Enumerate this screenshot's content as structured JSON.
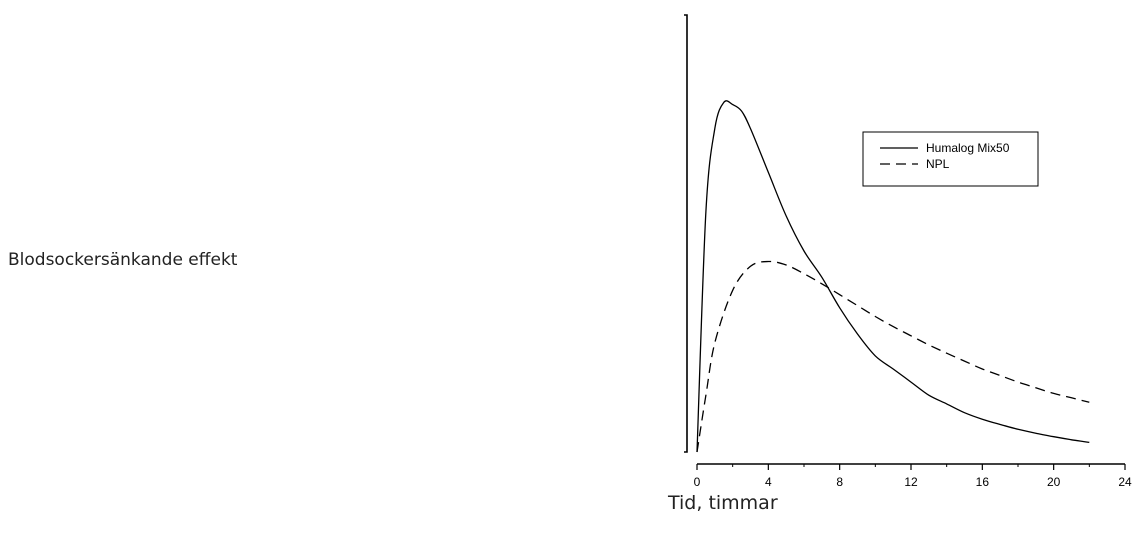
{
  "chart_data": {
    "type": "line",
    "xlabel": "Tid, timmar",
    "ylabel": "Blodsockersänkande effekt",
    "xlim": [
      0,
      24
    ],
    "ylim": [
      0,
      1
    ],
    "xticks": [
      0,
      4,
      8,
      12,
      16,
      20,
      24
    ],
    "legend_position": "top-right",
    "grid": false,
    "series": [
      {
        "name": "Humalog Mix50",
        "style": "solid",
        "color": "#000000",
        "x": [
          0,
          0.5,
          1,
          1.5,
          2,
          2.5,
          3,
          4,
          5,
          6,
          7,
          8,
          9,
          10,
          11,
          12,
          13,
          14,
          15,
          16,
          17,
          18,
          19,
          20,
          21,
          22
        ],
        "y": [
          0,
          0.55,
          0.74,
          0.8,
          0.795,
          0.78,
          0.74,
          0.64,
          0.54,
          0.46,
          0.4,
          0.33,
          0.27,
          0.22,
          0.19,
          0.16,
          0.13,
          0.11,
          0.09,
          0.075,
          0.063,
          0.052,
          0.043,
          0.035,
          0.028,
          0.022
        ]
      },
      {
        "name": "NPL",
        "style": "dashed",
        "color": "#000000",
        "x": [
          0,
          0.5,
          1,
          2,
          3,
          4,
          5,
          6,
          7,
          8,
          9,
          10,
          11,
          12,
          13,
          14,
          15,
          16,
          17,
          18,
          19,
          20,
          21,
          22
        ],
        "y": [
          0,
          0.13,
          0.25,
          0.37,
          0.425,
          0.436,
          0.428,
          0.408,
          0.385,
          0.36,
          0.335,
          0.31,
          0.287,
          0.266,
          0.245,
          0.226,
          0.208,
          0.19,
          0.175,
          0.16,
          0.147,
          0.134,
          0.124,
          0.114
        ]
      }
    ]
  }
}
